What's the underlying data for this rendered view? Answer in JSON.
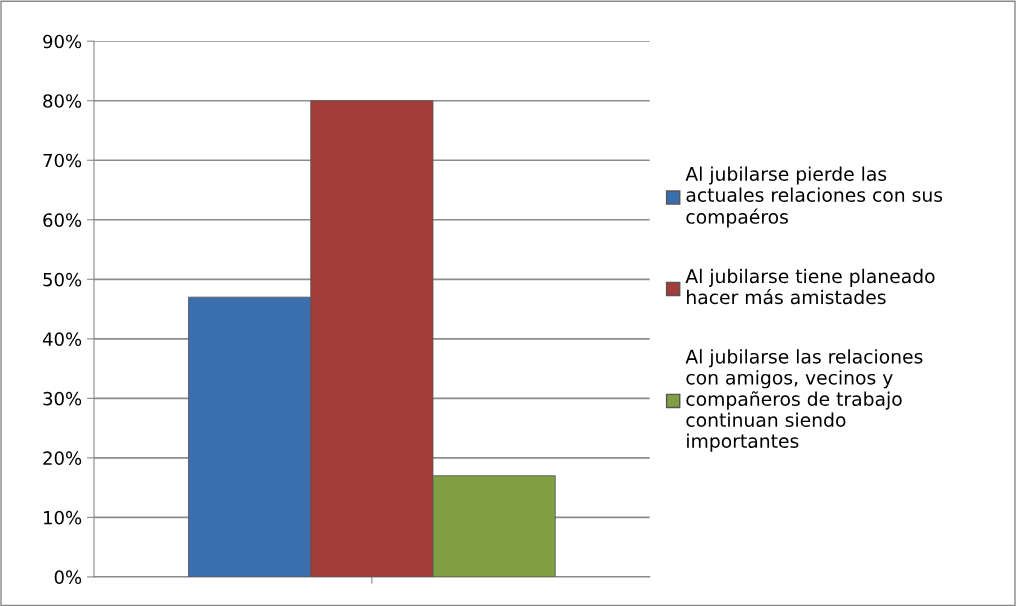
{
  "chart_data": {
    "type": "bar",
    "categories": [
      null
    ],
    "series": [
      {
        "name": "Al jubilarse pierde las\nactuales relaciones con sus\ncompaéros",
        "color": "#3a6eae",
        "values": [
          47
        ]
      },
      {
        "name": "Al jubilarse tiene planeado\nhacer más amistades",
        "color": "#a33d3b",
        "values": [
          80
        ]
      },
      {
        "name": "Al jubilarse las relaciones\ncon amigos, vecinos y\ncompañeros de trabajo\ncontinuan siendo\nimportantes",
        "color": "#7f9f42",
        "values": [
          17
        ]
      }
    ],
    "ylim": [
      0,
      90
    ],
    "yticks": [
      {
        "value": 0,
        "label": "0%"
      },
      {
        "value": 10,
        "label": "10%"
      },
      {
        "value": 20,
        "label": "20%"
      },
      {
        "value": 30,
        "label": "30%"
      },
      {
        "value": 40,
        "label": "40%"
      },
      {
        "value": 50,
        "label": "50%"
      },
      {
        "value": 60,
        "label": "60%"
      },
      {
        "value": 70,
        "label": "70%"
      },
      {
        "value": 80,
        "label": "80%"
      },
      {
        "value": 90,
        "label": "90%"
      }
    ],
    "grid": "y",
    "legend": "right"
  }
}
